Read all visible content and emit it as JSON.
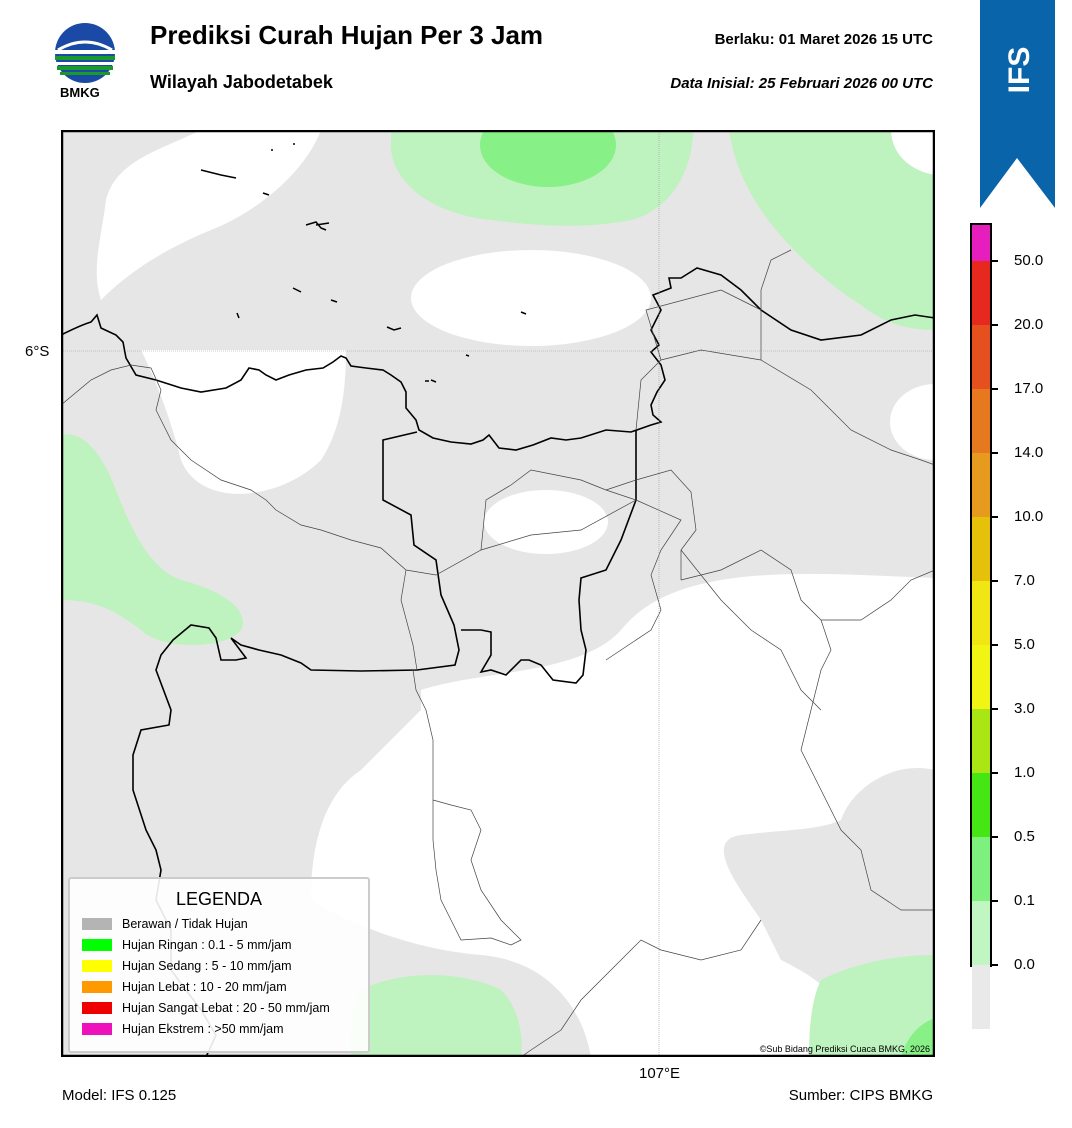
{
  "header": {
    "title": "Prediksi Curah Hujan Per 3 Jam",
    "subtitle": "Wilayah Jabodetabek",
    "valid": "Berlaku:  01 Maret 2026 15 UTC",
    "initial": "Data Inisial:  25 Februari 2026 00 UTC",
    "logo_text": "BMKG",
    "badge_text": "IFS"
  },
  "map": {
    "lat_label": "6°S",
    "lon_label": "107°E",
    "copyright": "©Sub Bidang Prediksi Cuaca BMKG, 2026"
  },
  "footer": {
    "model": "Model: IFS 0.125",
    "source": "Sumber: CIPS BMKG"
  },
  "legend": {
    "title": "LEGENDA",
    "items": [
      {
        "label": "Berawan / Tidak Hujan",
        "color": "#b4b4b4"
      },
      {
        "label": "Hujan Ringan : 0.1 - 5 mm/jam",
        "color": "#00ff00"
      },
      {
        "label": "Hujan Sedang : 5 - 10 mm/jam",
        "color": "#ffff00"
      },
      {
        "label": "Hujan Lebat : 10 - 20 mm/jam",
        "color": "#ff9900"
      },
      {
        "label": "Hujan Sangat Lebat : 20 - 50 mm/jam",
        "color": "#ee0000"
      },
      {
        "label": "Hujan Ekstrem : >50 mm/jam",
        "color": "#ee11bb"
      }
    ]
  },
  "colorbar": {
    "labels": [
      "50.0",
      "20.0",
      "17.0",
      "14.0",
      "10.0",
      "7.0",
      "5.0",
      "3.0",
      "1.0",
      "0.5",
      "0.1",
      "0.0"
    ],
    "colors": [
      "#e61ebe",
      "#e6281e",
      "#e6501e",
      "#e67820",
      "#e69a1e",
      "#e6c10a",
      "#f0e614",
      "#f0f514",
      "#aae614",
      "#46e614",
      "#7ef07e",
      "#c1f5c1",
      "#e9e9e9"
    ]
  },
  "colors": {
    "no_rain": "#ffffff",
    "cloudy": "#e6e6e6",
    "light": "#bef2be",
    "moderate": "#87f087",
    "badge": "#0a64aa"
  }
}
